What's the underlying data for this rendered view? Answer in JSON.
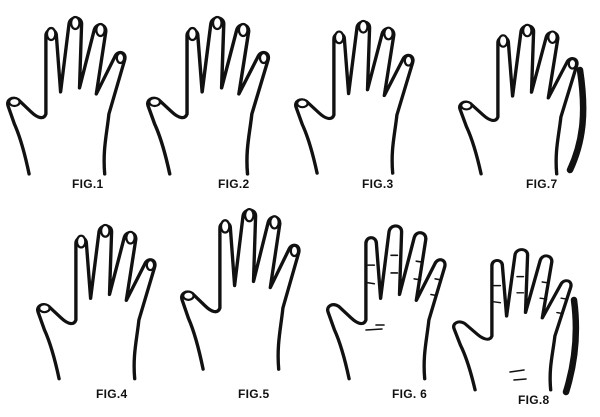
{
  "figures": [
    {
      "id": "fig1",
      "caption": "FIG.1"
    },
    {
      "id": "fig2",
      "caption": "FIG.2"
    },
    {
      "id": "fig3",
      "caption": "FIG.3"
    },
    {
      "id": "fig7",
      "caption": "FIG.7"
    },
    {
      "id": "fig4",
      "caption": "FIG.4"
    },
    {
      "id": "fig5",
      "caption": "FIG.5"
    },
    {
      "id": "fig6",
      "caption": "FIG. 6"
    },
    {
      "id": "fig8",
      "caption": "FIG.8"
    }
  ],
  "ink_color": "#111111",
  "paper_color": "#ffffff"
}
